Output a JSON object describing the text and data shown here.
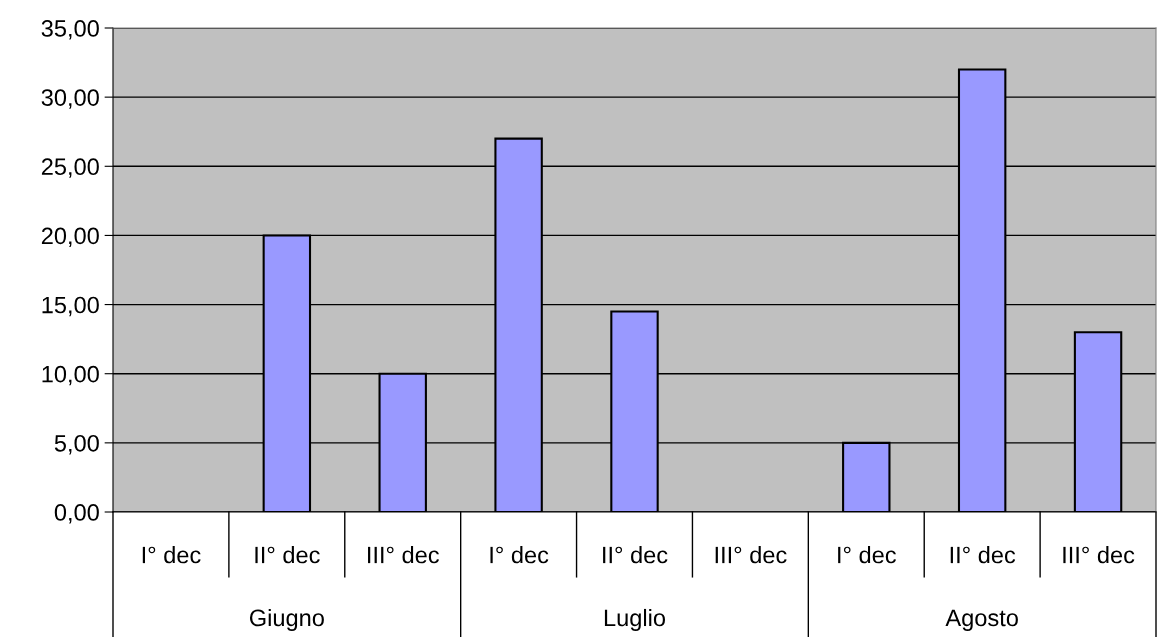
{
  "chart_data": {
    "type": "bar",
    "categories": [
      "I° dec",
      "II° dec",
      "III° dec",
      "I° dec",
      "II° dec",
      "III° dec",
      "I° dec",
      "II° dec",
      "III° dec"
    ],
    "values": [
      null,
      20,
      10,
      27,
      14.5,
      null,
      5,
      32,
      13
    ],
    "color": "#9999ff",
    "annotations": [
      "Giugno",
      "Luglio",
      "Agosto"
    ],
    "ylim": [
      0,
      35
    ],
    "yticks": [
      {
        "value": 0,
        "label": "0,00"
      },
      {
        "value": 5,
        "label": "5,00"
      },
      {
        "value": 10,
        "label": "10,00"
      },
      {
        "value": 15,
        "label": "15,00"
      },
      {
        "value": 20,
        "label": "20,00"
      },
      {
        "value": 25,
        "label": "25,00"
      },
      {
        "value": 30,
        "label": "30,00"
      },
      {
        "value": 35,
        "label": "35,00"
      }
    ],
    "grid": "y",
    "legend": false
  }
}
